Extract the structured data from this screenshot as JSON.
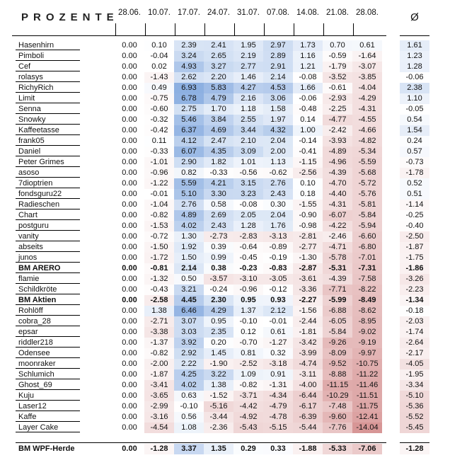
{
  "title": "PROZENTE",
  "columns": [
    "28.06.",
    "10.07.",
    "17.07.",
    "24.07.",
    "31.07.",
    "07.08.",
    "14.08.",
    "21.08.",
    "28.08."
  ],
  "avg_header": "Ø",
  "colors": {
    "positive": "#8cafe1",
    "negative": "#d79696"
  },
  "rows": [
    {
      "name": "Hasenhirn",
      "bold": false,
      "values": [
        "0.00",
        "0.10",
        "2.39",
        "2.41",
        "1.95",
        "2.97",
        "1.73",
        "0.70",
        "0.61"
      ],
      "avg": "1.61"
    },
    {
      "name": "Pimboli",
      "bold": false,
      "values": [
        "0.00",
        "-0.04",
        "3.24",
        "2.65",
        "2.19",
        "2.89",
        "1.16",
        "-0.59",
        "-1.64"
      ],
      "avg": "1.23"
    },
    {
      "name": "Cef",
      "bold": false,
      "values": [
        "0.00",
        "0.02",
        "4.93",
        "3.27",
        "2.77",
        "2.91",
        "1.21",
        "-1.79",
        "-3.07"
      ],
      "avg": "1.28"
    },
    {
      "name": "rolasys",
      "bold": false,
      "values": [
        "0.00",
        "-1.43",
        "2.62",
        "2.20",
        "1.46",
        "2.14",
        "-0.08",
        "-3.52",
        "-3.85"
      ],
      "avg": "-0.06"
    },
    {
      "name": "RichyRich",
      "bold": false,
      "values": [
        "0.00",
        "0.49",
        "6.93",
        "5.83",
        "4.27",
        "4.53",
        "1.66",
        "-0.61",
        "-4.04"
      ],
      "avg": "2.38"
    },
    {
      "name": "Limit",
      "bold": false,
      "values": [
        "0.00",
        "-0.75",
        "6.78",
        "4.79",
        "2.16",
        "3.06",
        "-0.06",
        "-2.93",
        "-4.29"
      ],
      "avg": "1.10"
    },
    {
      "name": "Senna",
      "bold": false,
      "values": [
        "0.00",
        "-0.60",
        "2.75",
        "1.70",
        "1.18",
        "1.58",
        "-0.48",
        "-2.25",
        "-4.31"
      ],
      "avg": "-0.05"
    },
    {
      "name": "Snowky",
      "bold": false,
      "values": [
        "0.00",
        "-0.32",
        "5.46",
        "3.84",
        "2.55",
        "1.97",
        "0.14",
        "-4.77",
        "-4.55"
      ],
      "avg": "0.54"
    },
    {
      "name": "Kaffeetasse",
      "bold": false,
      "values": [
        "0.00",
        "-0.42",
        "6.37",
        "4.69",
        "3.44",
        "4.32",
        "1.00",
        "-2.42",
        "-4.66"
      ],
      "avg": "1.54"
    },
    {
      "name": "frank05",
      "bold": false,
      "values": [
        "0.00",
        "0.11",
        "4.12",
        "2.47",
        "2.10",
        "2.04",
        "-0.14",
        "-3.93",
        "-4.82"
      ],
      "avg": "0.24"
    },
    {
      "name": "Daniel",
      "bold": false,
      "values": [
        "0.00",
        "-0.33",
        "6.07",
        "4.35",
        "3.09",
        "2.00",
        "-0.41",
        "-4.89",
        "-5.34"
      ],
      "avg": "0.57"
    },
    {
      "name": "Peter Grimes",
      "bold": false,
      "values": [
        "0.00",
        "-1.01",
        "2.90",
        "1.82",
        "1.01",
        "1.13",
        "-1.15",
        "-4.96",
        "-5.59"
      ],
      "avg": "-0.73"
    },
    {
      "name": "asoso",
      "bold": false,
      "values": [
        "0.00",
        "-0.96",
        "0.82",
        "-0.33",
        "-0.56",
        "-0.62",
        "-2.56",
        "-4.39",
        "-5.68"
      ],
      "avg": "-1.78"
    },
    {
      "name": "7dioptrien",
      "bold": false,
      "values": [
        "0.00",
        "-1.22",
        "5.59",
        "4.21",
        "3.15",
        "2.76",
        "0.10",
        "-4.70",
        "-5.72"
      ],
      "avg": "0.52"
    },
    {
      "name": "fondsguru22",
      "bold": false,
      "values": [
        "0.00",
        "-0.01",
        "5.10",
        "3.30",
        "3.23",
        "2.43",
        "0.18",
        "-4.40",
        "-5.76"
      ],
      "avg": "0.51"
    },
    {
      "name": "Radieschen",
      "bold": false,
      "values": [
        "0.00",
        "-1.04",
        "2.76",
        "0.58",
        "-0.08",
        "0.30",
        "-1.55",
        "-4.31",
        "-5.81"
      ],
      "avg": "-1.14"
    },
    {
      "name": "Chart",
      "bold": false,
      "values": [
        "0.00",
        "-0.82",
        "4.89",
        "2.69",
        "2.05",
        "2.04",
        "-0.90",
        "-6.07",
        "-5.84"
      ],
      "avg": "-0.25"
    },
    {
      "name": "postguru",
      "bold": false,
      "values": [
        "0.00",
        "-1.53",
        "4.02",
        "2.43",
        "1.28",
        "1.76",
        "-0.98",
        "-4.22",
        "-5.94"
      ],
      "avg": "-0.40"
    },
    {
      "name": "vanity",
      "bold": false,
      "values": [
        "0.00",
        "-0.72",
        "1.30",
        "-2.73",
        "-2.83",
        "-3.13",
        "-2.81",
        "-2.46",
        "-6.60"
      ],
      "avg": "-2.50"
    },
    {
      "name": "abseits",
      "bold": false,
      "values": [
        "0.00",
        "-1.50",
        "1.92",
        "0.39",
        "-0.64",
        "-0.89",
        "-2.77",
        "-4.71",
        "-6.80"
      ],
      "avg": "-1.87"
    },
    {
      "name": "junos",
      "bold": false,
      "values": [
        "0.00",
        "-1.72",
        "1.50",
        "0.99",
        "-0.45",
        "-0.19",
        "-1.30",
        "-5.78",
        "-7.01"
      ],
      "avg": "-1.75"
    },
    {
      "name": "BM ARERO",
      "bold": true,
      "values": [
        "0.00",
        "-0.81",
        "2.14",
        "0.38",
        "-0.23",
        "-0.83",
        "-2.87",
        "-5.31",
        "-7.31"
      ],
      "avg": "-1.86"
    },
    {
      "name": "flamie",
      "bold": false,
      "values": [
        "0.00",
        "-1.32",
        "0.50",
        "-3.57",
        "-3.10",
        "-3.05",
        "-3.61",
        "-4.39",
        "-7.58"
      ],
      "avg": "-3.26"
    },
    {
      "name": "Schildkröte",
      "bold": false,
      "values": [
        "0.00",
        "-0.43",
        "3.21",
        "-0.24",
        "-0.96",
        "-0.12",
        "-3.36",
        "-7.71",
        "-8.22"
      ],
      "avg": "-2.23"
    },
    {
      "name": "BM Aktien",
      "bold": true,
      "values": [
        "0.00",
        "-2.58",
        "4.45",
        "2.30",
        "0.95",
        "0.93",
        "-2.27",
        "-5.99",
        "-8.49"
      ],
      "avg": "-1.34"
    },
    {
      "name": "Rohlöff",
      "bold": false,
      "values": [
        "0.00",
        "1.38",
        "6.46",
        "4.29",
        "1.37",
        "2.12",
        "-1.56",
        "-6.88",
        "-8.62"
      ],
      "avg": "-0.18"
    },
    {
      "name": "cobra_28",
      "bold": false,
      "values": [
        "0.00",
        "-2.71",
        "3.07",
        "0.95",
        "-0.10",
        "-0.01",
        "-2.44",
        "-6.05",
        "-8.95"
      ],
      "avg": "-2.03"
    },
    {
      "name": "epsar",
      "bold": false,
      "values": [
        "0.00",
        "-3.38",
        "3.03",
        "2.35",
        "0.12",
        "0.61",
        "-1.81",
        "-5.84",
        "-9.02"
      ],
      "avg": "-1.74"
    },
    {
      "name": "riddler218",
      "bold": false,
      "values": [
        "0.00",
        "-1.37",
        "3.92",
        "0.20",
        "-0.70",
        "-1.27",
        "-3.42",
        "-9.26",
        "-9.19"
      ],
      "avg": "-2.64"
    },
    {
      "name": "Odensee",
      "bold": false,
      "values": [
        "0.00",
        "-0.82",
        "2.92",
        "1.45",
        "0.81",
        "0.32",
        "-3.99",
        "-8.09",
        "-9.97"
      ],
      "avg": "-2.17"
    },
    {
      "name": "moonraker",
      "bold": false,
      "values": [
        "0.00",
        "-2.00",
        "2.22",
        "-1.90",
        "-2.52",
        "-3.18",
        "-4.74",
        "-9.52",
        "-10.75"
      ],
      "avg": "-4.05"
    },
    {
      "name": "Schlumich",
      "bold": false,
      "values": [
        "0.00",
        "-1.87",
        "4.25",
        "3.22",
        "1.09",
        "0.91",
        "-3.11",
        "-8.88",
        "-11.22"
      ],
      "avg": "-1.95"
    },
    {
      "name": "Ghost_69",
      "bold": false,
      "values": [
        "0.00",
        "-3.41",
        "4.02",
        "1.38",
        "-0.82",
        "-1.31",
        "-4.00",
        "-11.15",
        "-11.46"
      ],
      "avg": "-3.34"
    },
    {
      "name": "Kuju",
      "bold": false,
      "values": [
        "0.00",
        "-3.65",
        "0.63",
        "-1.52",
        "-3.71",
        "-4.34",
        "-6.44",
        "-10.29",
        "-11.51"
      ],
      "avg": "-5.10"
    },
    {
      "name": "Laser12",
      "bold": false,
      "values": [
        "0.00",
        "-2.99",
        "-0.10",
        "-5.16",
        "-4.42",
        "-4.79",
        "-6.17",
        "-7.48",
        "-11.75"
      ],
      "avg": "-5.36"
    },
    {
      "name": "Kaffe",
      "bold": false,
      "values": [
        "0.00",
        "-3.16",
        "0.56",
        "-3.44",
        "-4.92",
        "-4.78",
        "-6.39",
        "-9.60",
        "-12.41"
      ],
      "avg": "-5.52"
    },
    {
      "name": "Layer Cake",
      "bold": false,
      "values": [
        "0.00",
        "-4.54",
        "1.08",
        "-2.36",
        "-5.43",
        "-5.15",
        "-5.44",
        "-7.76",
        "-14.04"
      ],
      "avg": "-5.45"
    }
  ],
  "total": {
    "name": "BM WPF-Herde",
    "bold": true,
    "values": [
      "0.00",
      "-1.28",
      "3.37",
      "1.35",
      "0.29",
      "0.33",
      "-1.88",
      "-5.33",
      "-7.06"
    ],
    "avg": "-1.28"
  }
}
